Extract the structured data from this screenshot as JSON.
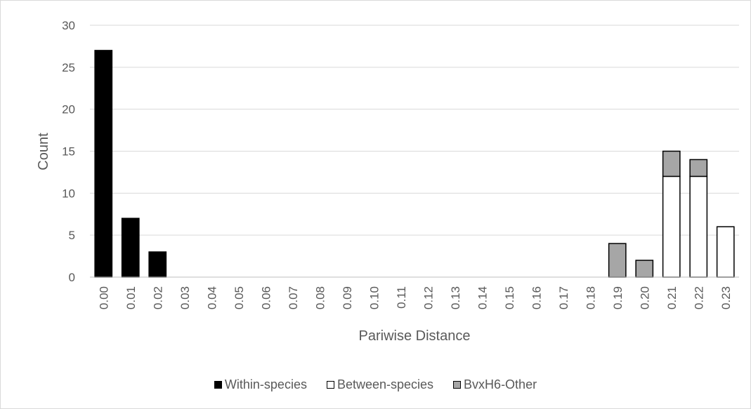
{
  "chart_data": {
    "type": "bar",
    "stacked": true,
    "xlabel": "Pariwise Distance",
    "ylabel": "Count",
    "ylim": [
      0,
      30
    ],
    "yticks": [
      "0",
      "5",
      "10",
      "15",
      "20",
      "25",
      "30"
    ],
    "grid": "horizontal",
    "legend_position": "bottom",
    "categories": [
      "0.00",
      "0.01",
      "0.02",
      "0.03",
      "0.04",
      "0.05",
      "0.06",
      "0.07",
      "0.08",
      "0.09",
      "0.10",
      "0.11",
      "0.12",
      "0.13",
      "0.14",
      "0.15",
      "0.16",
      "0.17",
      "0.18",
      "0.19",
      "0.20",
      "0.21",
      "0.22",
      "0.23"
    ],
    "series": [
      {
        "name": "Within-species",
        "color": "#000000",
        "values": [
          27,
          7,
          3,
          0,
          0,
          0,
          0,
          0,
          0,
          0,
          0,
          0,
          0,
          0,
          0,
          0,
          0,
          0,
          0,
          0,
          0,
          0,
          0,
          0
        ]
      },
      {
        "name": "Between-species",
        "color": "#ffffff",
        "values": [
          0,
          0,
          0,
          0,
          0,
          0,
          0,
          0,
          0,
          0,
          0,
          0,
          0,
          0,
          0,
          0,
          0,
          0,
          0,
          0,
          0,
          12,
          12,
          6
        ]
      },
      {
        "name": "BvxH6-Other",
        "color": "#a6a6a6",
        "values": [
          0,
          0,
          0,
          0,
          0,
          0,
          0,
          0,
          0,
          0,
          0,
          0,
          0,
          0,
          0,
          0,
          0,
          0,
          0,
          4,
          2,
          3,
          2,
          0
        ]
      }
    ]
  }
}
